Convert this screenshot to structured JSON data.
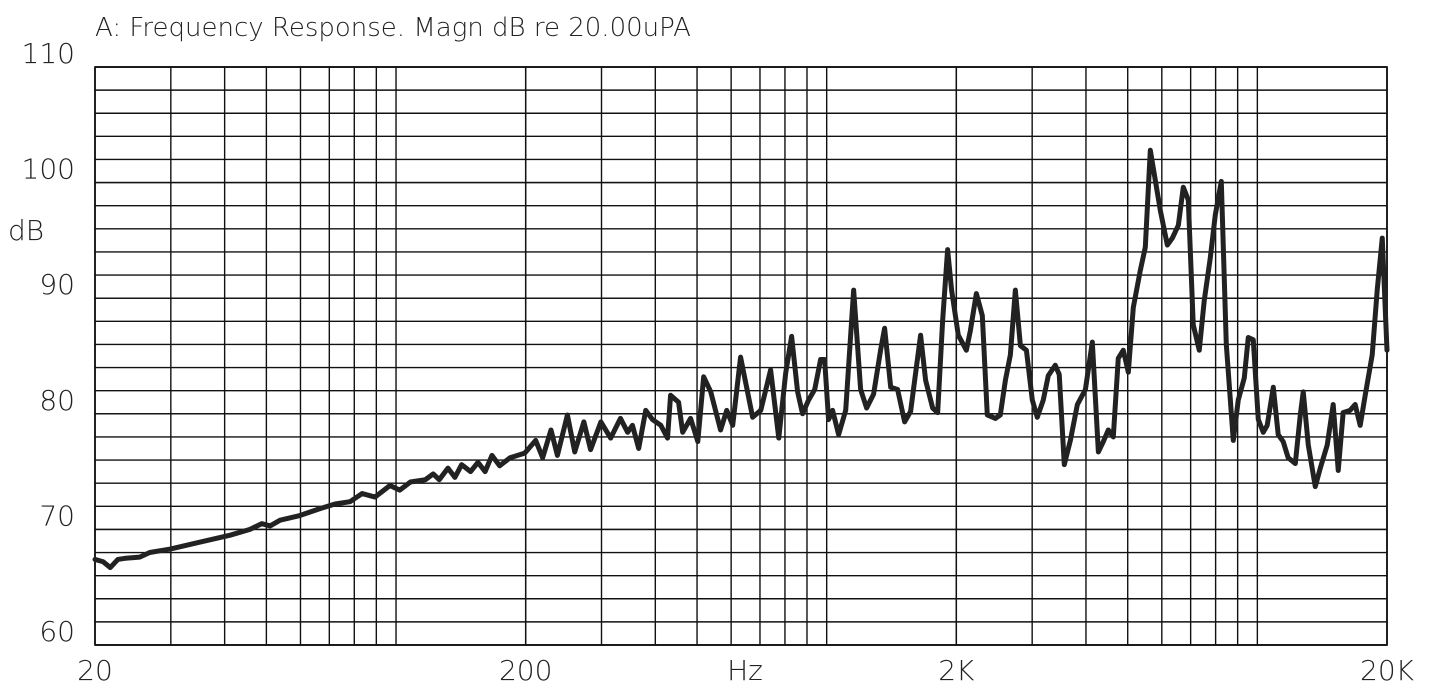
{
  "chart_data": {
    "type": "line",
    "title": "A: Frequency Response. Magn dB re 20.00uPA",
    "x_label": "Hz",
    "y_label": "dB",
    "xscale": "log",
    "xgrid": "log",
    "ygrid_step": 2,
    "xlim": [
      20,
      20000
    ],
    "ylim": [
      60,
      110
    ],
    "xticks": [
      20,
      200,
      {
        "value": 2000,
        "label": "2K"
      },
      {
        "value": 20000,
        "label": "20K"
      }
    ],
    "yticks": [
      60,
      70,
      80,
      90,
      100,
      110
    ],
    "x": [
      20,
      20.9,
      21.7,
      22.6,
      23.5,
      25.4,
      26.8,
      29.9,
      35.1,
      41.2,
      45.8,
      48.8,
      51.0,
      53.8,
      59.8,
      66.6,
      72.2,
      78.2,
      83.4,
      89.4,
      96.8,
      102,
      108,
      117,
      122,
      126,
      132,
      137,
      142,
      149,
      155,
      161,
      167,
      174,
      184,
      199,
      211,
      219,
      229,
      237,
      250,
      260,
      273,
      283,
      299,
      315,
      332,
      345,
      354,
      366,
      380,
      394,
      412,
      427,
      434,
      453,
      463,
      483,
      502,
      518,
      538,
      567,
      586,
      605,
      631,
      659,
      673,
      703,
      741,
      774,
      803,
      829,
      856,
      879,
      908,
      938,
      968,
      989,
      1010,
      1032,
      1066,
      1107,
      1155,
      1199,
      1238,
      1285,
      1334,
      1363,
      1408,
      1461,
      1517,
      1566,
      1652,
      1697,
      1762,
      1810,
      1859,
      1909,
      1950,
      2021,
      2110,
      2156,
      2226,
      2298,
      2360,
      2465,
      2530,
      2600,
      2670,
      2742,
      2817,
      2909,
      3002,
      3083,
      3184,
      3270,
      3394,
      3467,
      3562,
      3680,
      3820,
      3988,
      4138,
      4274,
      4389,
      4507,
      4629,
      4754,
      4883,
      5016,
      5152,
      5348,
      5493,
      5642,
      5795,
      5952,
      6180,
      6348,
      6554,
      6730,
      6912,
      7098,
      7330,
      7528,
      7776,
      7986,
      8246,
      8470,
      8792,
      9030,
      9324,
      9526,
      9784,
      10050,
      10320,
      10540,
      10890,
      11180,
      11480,
      11790,
      12250,
      12580,
      12780,
      13130,
      13630,
      14000,
      14530,
      15000,
      15410,
      15820,
      16420,
      16870,
      17330,
      17800,
      18480,
      18980,
      19500,
      20000
    ],
    "series": [
      {
        "name": "A",
        "color": "#222222",
        "values": [
          67.4,
          67.2,
          66.7,
          67.4,
          67.5,
          67.6,
          68.0,
          68.3,
          68.9,
          69.5,
          70.0,
          70.5,
          70.3,
          70.8,
          71.2,
          71.8,
          72.2,
          72.4,
          73.1,
          72.8,
          73.8,
          73.4,
          74.1,
          74.3,
          74.8,
          74.3,
          75.3,
          74.5,
          75.6,
          75.0,
          75.8,
          75.0,
          76.4,
          75.5,
          76.2,
          76.6,
          77.7,
          76.2,
          78.6,
          76.4,
          79.9,
          76.7,
          79.3,
          76.9,
          79.3,
          77.9,
          79.6,
          78.4,
          79.0,
          77.0,
          80.3,
          79.5,
          79.0,
          77.9,
          81.6,
          81.0,
          78.4,
          79.6,
          77.6,
          83.2,
          81.9,
          78.6,
          80.3,
          79.0,
          84.9,
          81.4,
          79.7,
          80.3,
          83.8,
          77.9,
          83.5,
          86.7,
          81.9,
          80.0,
          81.2,
          82.1,
          84.7,
          84.7,
          79.5,
          80.3,
          78.2,
          80.3,
          90.7,
          82.1,
          80.5,
          81.7,
          85.5,
          87.4,
          82.3,
          82.1,
          79.3,
          80.2,
          86.8,
          82.9,
          80.5,
          80.1,
          88.1,
          94.2,
          90.7,
          86.8,
          85.5,
          87.2,
          90.4,
          88.5,
          79.9,
          79.6,
          79.9,
          82.9,
          85.1,
          90.7,
          85.9,
          85.5,
          81.2,
          79.7,
          81.2,
          83.3,
          84.2,
          83.4,
          75.6,
          77.7,
          80.8,
          82.1,
          86.2,
          76.7,
          77.6,
          78.6,
          78.0,
          84.8,
          85.5,
          83.6,
          89.2,
          92.4,
          94.4,
          102.8,
          100.2,
          97.6,
          94.6,
          95.2,
          96.3,
          99.6,
          98.5,
          87.7,
          85.5,
          89.8,
          93.5,
          97.2,
          100.1,
          86.0,
          77.7,
          81.2,
          83.1,
          86.6,
          86.4,
          79.5,
          78.4,
          79.0,
          82.3,
          78.2,
          77.6,
          76.2,
          75.7,
          79.9,
          81.9,
          77.3,
          73.7,
          75.3,
          77.3,
          80.8,
          75.1,
          80.1,
          80.3,
          80.8,
          79.0,
          81.6,
          85.1,
          90.7,
          95.2,
          85.5
        ]
      }
    ]
  }
}
